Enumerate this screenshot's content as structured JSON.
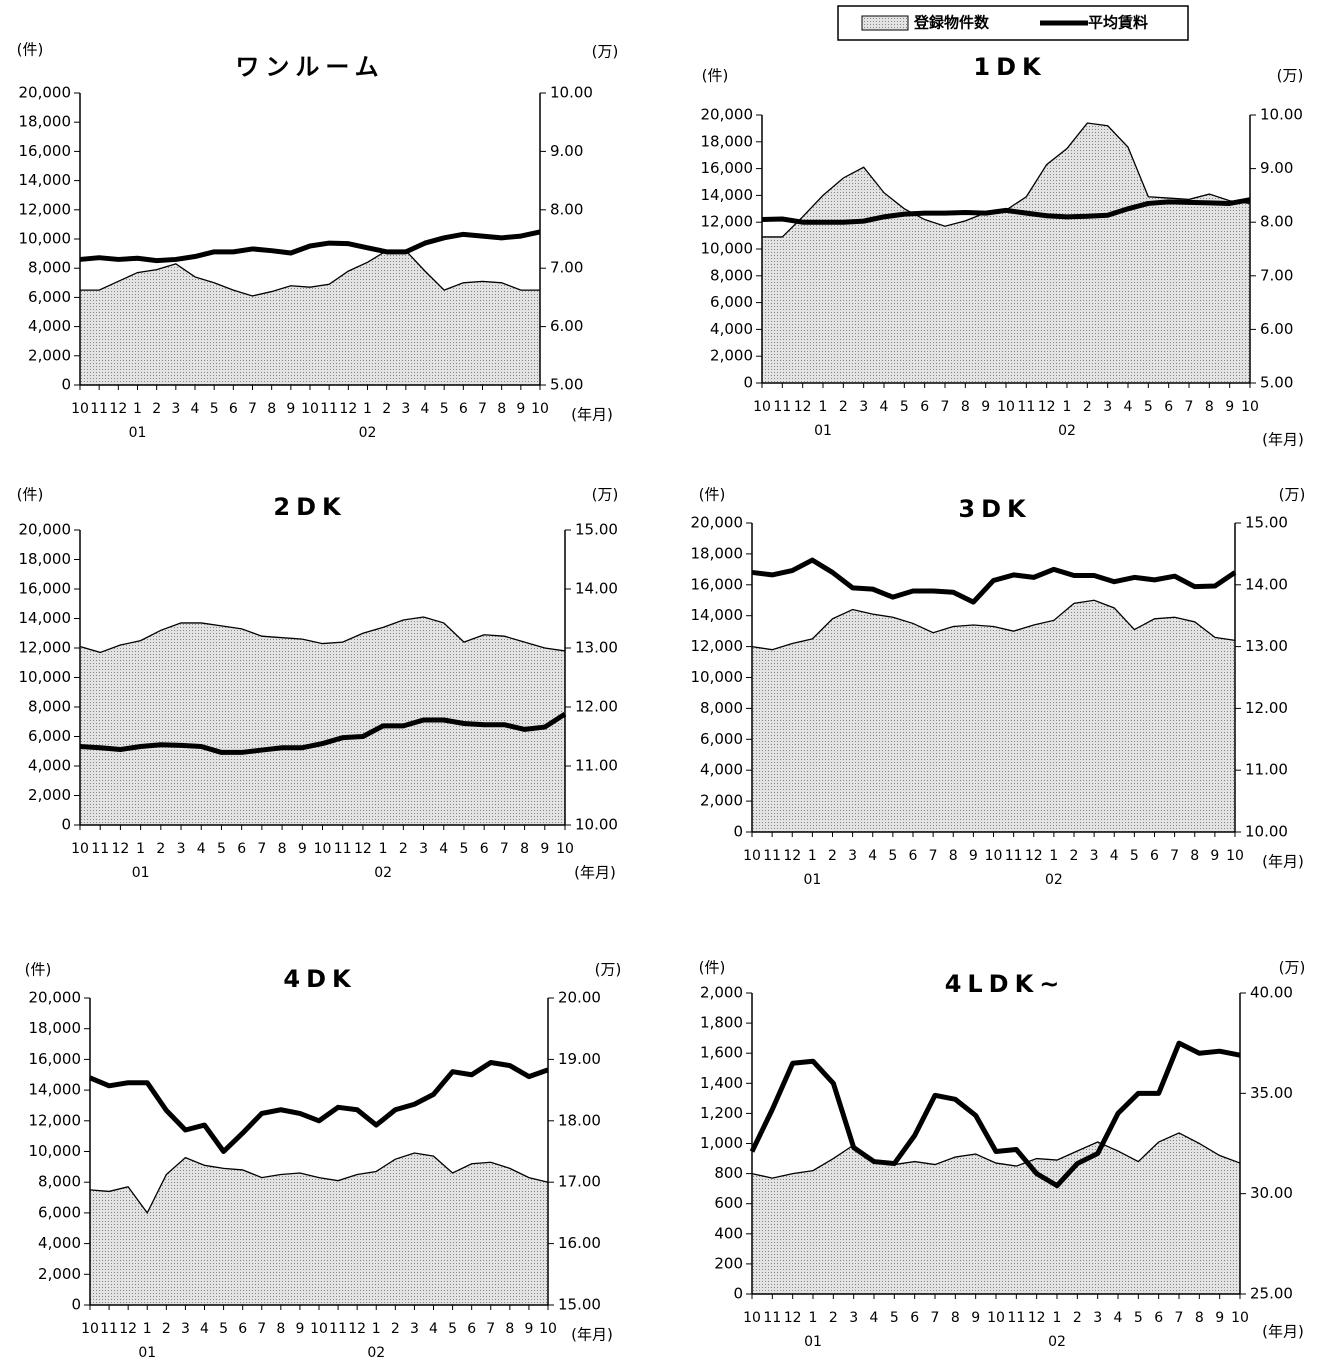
{
  "legend": [
    {
      "name": "登録物件数",
      "color": "#e3e3e3"
    },
    {
      "name": "平均賃料",
      "color": "#000000"
    }
  ],
  "chart_data": [
    {
      "type": "area_line",
      "title": "ワンルーム",
      "y_label": "(件)",
      "y2_label": "(万)",
      "x_label": "(年月)",
      "categories": [
        "10",
        "11",
        "12",
        "1",
        "2",
        "3",
        "4",
        "5",
        "6",
        "7",
        "8",
        "9",
        "10",
        "11",
        "12",
        "1",
        "2",
        "3",
        "4",
        "5",
        "6",
        "7",
        "8",
        "9",
        "10"
      ],
      "year_labels": [
        {
          "at": 3,
          "label": "01"
        },
        {
          "at": 15,
          "label": "02"
        }
      ],
      "ylim": [
        0,
        20000
      ],
      "yticks": [
        0,
        {
          "value": 2000,
          "label": "2,000"
        },
        {
          "value": 4000,
          "label": "4,000"
        },
        {
          "value": 6000,
          "label": "6,000"
        },
        {
          "value": 8000,
          "label": "8,000"
        },
        {
          "value": 10000,
          "label": "10,000"
        },
        {
          "value": 12000,
          "label": "12,000"
        },
        {
          "value": 14000,
          "label": "14,000"
        },
        {
          "value": 16000,
          "label": "16,000"
        },
        {
          "value": 18000,
          "label": "18,000"
        },
        {
          "value": 20000,
          "label": "20,000"
        }
      ],
      "y2lim": [
        5,
        10
      ],
      "y2ticks": [
        {
          "value": 5,
          "label": "5.00"
        },
        {
          "value": 6,
          "label": "6.00"
        },
        {
          "value": 7,
          "label": "7.00"
        },
        {
          "value": 8,
          "label": "8.00"
        },
        {
          "value": 9,
          "label": "9.00"
        },
        {
          "value": 10,
          "label": "10.00"
        }
      ],
      "series": [
        {
          "color": "#e3e3e3",
          "values": [
            6500,
            6500,
            7100,
            7700,
            7900,
            8300,
            7400,
            7000,
            6500,
            6100,
            6400,
            6800,
            6700,
            6900,
            7800,
            8400,
            9200,
            9200,
            7800,
            6500,
            7000,
            7100,
            7000,
            6500,
            6500
          ]
        },
        {
          "color": "#000000",
          "axis": "y2",
          "values": [
            7.15,
            7.18,
            7.15,
            7.17,
            7.13,
            7.15,
            7.2,
            7.28,
            7.28,
            7.33,
            7.3,
            7.26,
            7.38,
            7.43,
            7.42,
            7.35,
            7.28,
            7.28,
            7.43,
            7.52,
            7.58,
            7.55,
            7.52,
            7.55,
            7.62
          ]
        }
      ]
    },
    {
      "type": "area_line",
      "title": "1DK",
      "y_label": "(件)",
      "y2_label": "(万)",
      "x_label": "(年月)",
      "categories": [
        "10",
        "11",
        "12",
        "1",
        "2",
        "3",
        "4",
        "5",
        "6",
        "7",
        "8",
        "9",
        "10",
        "11",
        "12",
        "1",
        "2",
        "3",
        "4",
        "5",
        "6",
        "7",
        "8",
        "9",
        "10"
      ],
      "year_labels": [
        {
          "at": 3,
          "label": "01"
        },
        {
          "at": 15,
          "label": "02"
        }
      ],
      "ylim": [
        0,
        20000
      ],
      "yticks": [
        0,
        {
          "value": 2000,
          "label": "2,000"
        },
        {
          "value": 4000,
          "label": "4,000"
        },
        {
          "value": 6000,
          "label": "6,000"
        },
        {
          "value": 8000,
          "label": "8,000"
        },
        {
          "value": 10000,
          "label": "10,000"
        },
        {
          "value": 12000,
          "label": "12,000"
        },
        {
          "value": 14000,
          "label": "14,000"
        },
        {
          "value": 16000,
          "label": "16,000"
        },
        {
          "value": 18000,
          "label": "18,000"
        },
        {
          "value": 20000,
          "label": "20,000"
        }
      ],
      "y2lim": [
        5,
        10
      ],
      "y2ticks": [
        {
          "value": 5,
          "label": "5.00"
        },
        {
          "value": 6,
          "label": "6.00"
        },
        {
          "value": 7,
          "label": "7.00"
        },
        {
          "value": 8,
          "label": "8.00"
        },
        {
          "value": 9,
          "label": "9.00"
        },
        {
          "value": 10,
          "label": "10.00"
        }
      ],
      "series": [
        {
          "color": "#e3e3e3",
          "values": [
            10900,
            10900,
            12400,
            14000,
            15300,
            16100,
            14200,
            13000,
            12200,
            11700,
            12100,
            12700,
            12900,
            13900,
            16300,
            17500,
            19400,
            19200,
            17600,
            13900,
            13800,
            13700,
            14100,
            13600,
            13400
          ]
        },
        {
          "color": "#000000",
          "axis": "y2",
          "values": [
            8.05,
            8.06,
            8.0,
            8.0,
            8.0,
            8.02,
            8.1,
            8.15,
            8.17,
            8.17,
            8.18,
            8.17,
            8.22,
            8.17,
            8.12,
            8.1,
            8.11,
            8.13,
            8.25,
            8.35,
            8.38,
            8.37,
            8.36,
            8.35,
            8.42
          ]
        }
      ]
    },
    {
      "type": "area_line",
      "title": "2DK",
      "y_label": "(件)",
      "y2_label": "(万)",
      "x_label": "(年月)",
      "categories": [
        "10",
        "11",
        "12",
        "1",
        "2",
        "3",
        "4",
        "5",
        "6",
        "7",
        "8",
        "9",
        "10",
        "11",
        "12",
        "1",
        "2",
        "3",
        "4",
        "5",
        "6",
        "7",
        "8",
        "9",
        "10"
      ],
      "year_labels": [
        {
          "at": 3,
          "label": "01"
        },
        {
          "at": 15,
          "label": "02"
        }
      ],
      "ylim": [
        0,
        20000
      ],
      "yticks": [
        0,
        {
          "value": 2000,
          "label": "2,000"
        },
        {
          "value": 4000,
          "label": "4,000"
        },
        {
          "value": 6000,
          "label": "6,000"
        },
        {
          "value": 8000,
          "label": "8,000"
        },
        {
          "value": 10000,
          "label": "10,000"
        },
        {
          "value": 12000,
          "label": "12,000"
        },
        {
          "value": 14000,
          "label": "14,000"
        },
        {
          "value": 16000,
          "label": "16,000"
        },
        {
          "value": 18000,
          "label": "18,000"
        },
        {
          "value": 20000,
          "label": "20,000"
        }
      ],
      "y2lim": [
        10,
        15
      ],
      "y2ticks": [
        {
          "value": 10,
          "label": "10.00"
        },
        {
          "value": 11,
          "label": "11.00"
        },
        {
          "value": 12,
          "label": "12.00"
        },
        {
          "value": 13,
          "label": "13.00"
        },
        {
          "value": 14,
          "label": "14.00"
        },
        {
          "value": 15,
          "label": "15.00"
        }
      ],
      "series": [
        {
          "color": "#e3e3e3",
          "values": [
            12100,
            11700,
            12200,
            12500,
            13200,
            13700,
            13700,
            13500,
            13300,
            12800,
            12700,
            12600,
            12300,
            12400,
            13000,
            13400,
            13900,
            14100,
            13700,
            12400,
            12900,
            12800,
            12400,
            12000,
            11800
          ]
        },
        {
          "color": "#000000",
          "axis": "y2",
          "values": [
            11.33,
            11.31,
            11.28,
            11.33,
            11.36,
            11.35,
            11.33,
            11.23,
            11.23,
            11.27,
            11.31,
            11.31,
            11.38,
            11.48,
            11.5,
            11.68,
            11.68,
            11.78,
            11.78,
            11.72,
            11.7,
            11.7,
            11.62,
            11.66,
            11.88
          ]
        }
      ]
    },
    {
      "type": "area_line",
      "title": "3DK",
      "y_label": "(件)",
      "y2_label": "(万)",
      "x_label": "(年月)",
      "categories": [
        "10",
        "11",
        "12",
        "1",
        "2",
        "3",
        "4",
        "5",
        "6",
        "7",
        "8",
        "9",
        "10",
        "11",
        "12",
        "1",
        "2",
        "3",
        "4",
        "5",
        "6",
        "7",
        "8",
        "9",
        "10"
      ],
      "year_labels": [
        {
          "at": 3,
          "label": "01"
        },
        {
          "at": 15,
          "label": "02"
        }
      ],
      "ylim": [
        0,
        20000
      ],
      "yticks": [
        0,
        {
          "value": 2000,
          "label": "2,000"
        },
        {
          "value": 4000,
          "label": "4,000"
        },
        {
          "value": 6000,
          "label": "6,000"
        },
        {
          "value": 8000,
          "label": "8,000"
        },
        {
          "value": 10000,
          "label": "10,000"
        },
        {
          "value": 12000,
          "label": "12,000"
        },
        {
          "value": 14000,
          "label": "14,000"
        },
        {
          "value": 16000,
          "label": "16,000"
        },
        {
          "value": 18000,
          "label": "18,000"
        },
        {
          "value": 20000,
          "label": "20,000"
        }
      ],
      "y2lim": [
        10,
        15
      ],
      "y2ticks": [
        {
          "value": 10,
          "label": "10.00"
        },
        {
          "value": 11,
          "label": "11.00"
        },
        {
          "value": 12,
          "label": "12.00"
        },
        {
          "value": 13,
          "label": "13.00"
        },
        {
          "value": 14,
          "label": "14.00"
        },
        {
          "value": 15,
          "label": "15.00"
        }
      ],
      "series": [
        {
          "color": "#e3e3e3",
          "values": [
            12000,
            11800,
            12200,
            12500,
            13800,
            14400,
            14100,
            13900,
            13500,
            12900,
            13300,
            13400,
            13300,
            13000,
            13400,
            13700,
            14800,
            15000,
            14500,
            13100,
            13800,
            13900,
            13600,
            12600,
            12400
          ]
        },
        {
          "color": "#000000",
          "axis": "y2",
          "values": [
            14.2,
            14.16,
            14.23,
            14.4,
            14.2,
            13.95,
            13.93,
            13.8,
            13.9,
            13.9,
            13.88,
            13.72,
            14.07,
            14.16,
            14.12,
            14.25,
            14.15,
            14.15,
            14.05,
            14.12,
            14.08,
            14.14,
            13.97,
            13.98,
            14.2
          ]
        }
      ]
    },
    {
      "type": "area_line",
      "title": "4DK",
      "y_label": "(件)",
      "y2_label": "(万)",
      "x_label": "(年月)",
      "categories": [
        "10",
        "11",
        "12",
        "1",
        "2",
        "3",
        "4",
        "5",
        "6",
        "7",
        "8",
        "9",
        "10",
        "11",
        "12",
        "1",
        "2",
        "3",
        "4",
        "5",
        "6",
        "7",
        "8",
        "9",
        "10"
      ],
      "year_labels": [
        {
          "at": 3,
          "label": "01"
        },
        {
          "at": 15,
          "label": "02"
        }
      ],
      "ylim": [
        0,
        20000
      ],
      "yticks": [
        0,
        {
          "value": 2000,
          "label": "2,000"
        },
        {
          "value": 4000,
          "label": "4,000"
        },
        {
          "value": 6000,
          "label": "6,000"
        },
        {
          "value": 8000,
          "label": "8,000"
        },
        {
          "value": 10000,
          "label": "10,000"
        },
        {
          "value": 12000,
          "label": "12,000"
        },
        {
          "value": 14000,
          "label": "14,000"
        },
        {
          "value": 16000,
          "label": "16,000"
        },
        {
          "value": 18000,
          "label": "18,000"
        },
        {
          "value": 20000,
          "label": "20,000"
        }
      ],
      "y2lim": [
        15,
        20
      ],
      "y2ticks": [
        {
          "value": 15,
          "label": "15.00"
        },
        {
          "value": 16,
          "label": "16.00"
        },
        {
          "value": 17,
          "label": "17.00"
        },
        {
          "value": 18,
          "label": "18.00"
        },
        {
          "value": 19,
          "label": "19.00"
        },
        {
          "value": 20,
          "label": "20.00"
        }
      ],
      "series": [
        {
          "color": "#e3e3e3",
          "values": [
            7500,
            7400,
            7700,
            6000,
            8500,
            9600,
            9100,
            8900,
            8800,
            8300,
            8500,
            8600,
            8300,
            8100,
            8500,
            8700,
            9500,
            9900,
            9700,
            8600,
            9200,
            9300,
            8900,
            8300,
            8000
          ]
        },
        {
          "color": "#000000",
          "axis": "y2",
          "values": [
            18.7,
            18.57,
            18.62,
            18.62,
            18.17,
            17.85,
            17.93,
            17.5,
            17.8,
            18.12,
            18.18,
            18.12,
            18.0,
            18.22,
            18.18,
            17.93,
            18.18,
            18.27,
            18.43,
            18.8,
            18.75,
            18.95,
            18.9,
            18.72,
            18.83
          ]
        }
      ]
    },
    {
      "type": "area_line",
      "title": "4LDK~",
      "y_label": "(件)",
      "y2_label": "(万)",
      "x_label": "(年月)",
      "categories": [
        "10",
        "11",
        "12",
        "1",
        "2",
        "3",
        "4",
        "5",
        "6",
        "7",
        "8",
        "9",
        "10",
        "11",
        "12",
        "1",
        "2",
        "3",
        "4",
        "5",
        "6",
        "7",
        "8",
        "9",
        "10"
      ],
      "year_labels": [
        {
          "at": 3,
          "label": "01"
        },
        {
          "at": 15,
          "label": "02"
        }
      ],
      "ylim": [
        0,
        2000
      ],
      "yticks": [
        0,
        200,
        400,
        600,
        800,
        {
          "value": 1000,
          "label": "1,000"
        },
        {
          "value": 1200,
          "label": "1,200"
        },
        {
          "value": 1400,
          "label": "1,400"
        },
        {
          "value": 1600,
          "label": "1,600"
        },
        {
          "value": 1800,
          "label": "1,800"
        },
        {
          "value": 2000,
          "label": "2,000"
        }
      ],
      "y2lim": [
        25,
        40
      ],
      "y2ticks": [
        {
          "value": 25,
          "label": "25.00"
        },
        {
          "value": 30,
          "label": "30.00"
        },
        {
          "value": 35,
          "label": "35.00"
        },
        {
          "value": 40,
          "label": "40.00"
        }
      ],
      "series": [
        {
          "color": "#e3e3e3",
          "values": [
            800,
            770,
            800,
            820,
            900,
            990,
            880,
            860,
            880,
            860,
            910,
            930,
            870,
            850,
            900,
            890,
            950,
            1010,
            950,
            880,
            1010,
            1070,
            1000,
            920,
            870
          ]
        },
        {
          "color": "#000000",
          "axis": "y2",
          "values": [
            32.1,
            34.2,
            36.5,
            36.6,
            35.5,
            32.3,
            31.6,
            31.5,
            32.9,
            34.9,
            34.7,
            33.9,
            32.1,
            32.2,
            31.0,
            30.4,
            31.5,
            32.0,
            34.0,
            35.0,
            35.0,
            37.5,
            37.0,
            37.1,
            36.9
          ]
        }
      ]
    }
  ]
}
